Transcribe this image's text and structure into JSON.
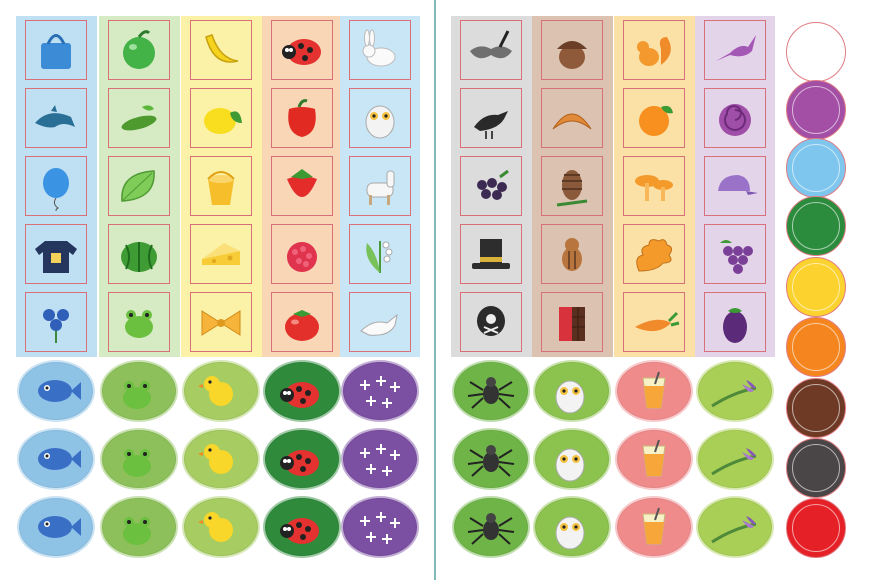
{
  "columns": [
    {
      "name": "blue",
      "bg": "#bfe0f3"
    },
    {
      "name": "green",
      "bg": "#d6ebc4"
    },
    {
      "name": "yellow",
      "bg": "#fbf2a8"
    },
    {
      "name": "orange-red",
      "bg": "#f9d7b6"
    },
    {
      "name": "light-blue",
      "bg": "#c8e6f6"
    },
    {
      "name": "gray",
      "bg": "#dcdcdc"
    },
    {
      "name": "brown",
      "bg": "#dcc2b0"
    },
    {
      "name": "amber",
      "bg": "#fce1a6"
    },
    {
      "name": "lilac",
      "bg": "#e4d4ea"
    }
  ],
  "grid_icons": [
    [
      "bag-icon",
      "apple-icon",
      "banana-icon",
      "ladybug-icon",
      "rabbit-icon",
      "mask-icon",
      "acorn-icon",
      "squirrel-icon",
      "hummingbird-icon"
    ],
    [
      "dolphin-icon",
      "cucumber-icon",
      "lemon-icon",
      "pepper-icon",
      "owl-icon",
      "crow-icon",
      "croissant-icon",
      "orange-icon",
      "snail-shell-icon"
    ],
    [
      "balloon-icon",
      "leaf-icon",
      "bucket-icon",
      "strawberry-icon",
      "llama-icon",
      "blackberry-icon",
      "pinecone-icon",
      "mushrooms-icon",
      "cap-icon"
    ],
    [
      "sweater-icon",
      "watermelon-icon",
      "cheese-icon",
      "raspberry-icon",
      "lily-of-valley-icon",
      "top-hat-icon",
      "chipmunk-icon",
      "oak-leaf-icon",
      "grapes-icon"
    ],
    [
      "cornflower-icon",
      "frog-icon",
      "bow-icon",
      "tomato-icon",
      "dove-icon",
      "pirate-balloon-icon",
      "chocolate-icon",
      "carrot-icon",
      "eggplant-icon"
    ]
  ],
  "sticker_columns": [
    {
      "icon": "fish-icon",
      "color": "#8fc3e6"
    },
    {
      "icon": "frog-icon",
      "color": "#8dc05a"
    },
    {
      "icon": "chick-icon",
      "color": "#a6cc62"
    },
    {
      "icon": "ladybug-icon",
      "color": "#2f8a3c"
    },
    {
      "icon": "snowflakes-icon",
      "color": "#7b4fa2"
    },
    {
      "icon": "spider-icon",
      "color": "#6fb447"
    },
    {
      "icon": "owl-icon",
      "color": "#8cc24e"
    },
    {
      "icon": "juice-glass-icon",
      "color": "#f08b8c"
    },
    {
      "icon": "crocus-icon",
      "color": "#a9cf56"
    }
  ],
  "swatches": [
    "#ffffff",
    "#a24fa5",
    "#7ec6ee",
    "#2c8c3e",
    "#fcd22e",
    "#f5861f",
    "#6e3a25",
    "#4a4546",
    "#e52026"
  ]
}
